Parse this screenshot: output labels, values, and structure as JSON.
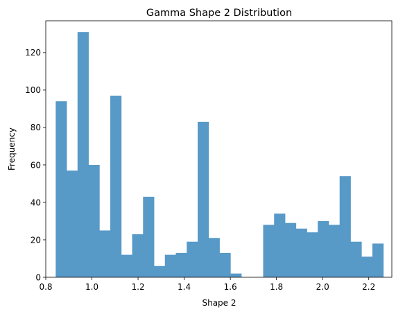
{
  "chart_data": {
    "type": "bar",
    "title": "Gamma Shape 2 Distribution",
    "xlabel": "Shape 2",
    "ylabel": "Frequency",
    "xlim": [
      0.8,
      2.3
    ],
    "ylim": [
      0,
      137
    ],
    "xticks": [
      0.8,
      1.0,
      1.2,
      1.4,
      1.6,
      1.8,
      2.0,
      2.2
    ],
    "xtick_labels": [
      "0.8",
      "1.0",
      "1.2",
      "1.4",
      "1.6",
      "1.8",
      "2.0",
      "2.2"
    ],
    "yticks": [
      0,
      20,
      40,
      60,
      80,
      100,
      120
    ],
    "ytick_labels": [
      "0",
      "20",
      "40",
      "60",
      "80",
      "100",
      "120"
    ],
    "bin_start": 0.843,
    "bin_end": 2.263,
    "bin_count": 30,
    "values": [
      94,
      57,
      131,
      60,
      25,
      97,
      12,
      23,
      43,
      6,
      12,
      13,
      19,
      83,
      21,
      13,
      2,
      0,
      0,
      28,
      34,
      29,
      26,
      24,
      30,
      28,
      54,
      19,
      11,
      18
    ],
    "color": "#5799c7",
    "grid": false,
    "legend": "none"
  }
}
